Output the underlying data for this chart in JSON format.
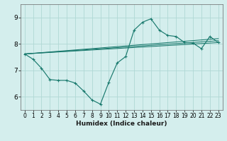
{
  "xlabel": "Humidex (Indice chaleur)",
  "bg_color": "#d4eeed",
  "line_color": "#1a7a6e",
  "grid_color": "#b0d8d5",
  "xlim": [
    -0.5,
    23.5
  ],
  "ylim": [
    5.5,
    9.5
  ],
  "yticks": [
    6,
    7,
    8,
    9
  ],
  "xticks": [
    0,
    1,
    2,
    3,
    4,
    5,
    6,
    7,
    8,
    9,
    10,
    11,
    12,
    13,
    14,
    15,
    16,
    17,
    18,
    19,
    20,
    21,
    22,
    23
  ],
  "main_line": {
    "x": [
      0,
      1,
      2,
      3,
      4,
      5,
      6,
      7,
      8,
      9,
      10,
      11,
      12,
      13,
      14,
      15,
      16,
      17,
      18,
      19,
      20,
      21,
      22,
      23
    ],
    "y": [
      7.62,
      7.42,
      7.08,
      6.65,
      6.62,
      6.62,
      6.52,
      6.22,
      5.88,
      5.72,
      6.55,
      7.28,
      7.52,
      8.52,
      8.82,
      8.95,
      8.52,
      8.32,
      8.28,
      8.05,
      8.03,
      7.82,
      8.28,
      8.05
    ]
  },
  "straight_lines": [
    {
      "x": [
        0,
        23
      ],
      "y": [
        7.62,
        8.05
      ]
    },
    {
      "x": [
        0,
        23
      ],
      "y": [
        7.62,
        8.12
      ]
    },
    {
      "x": [
        0,
        23
      ],
      "y": [
        7.62,
        8.2
      ]
    }
  ]
}
